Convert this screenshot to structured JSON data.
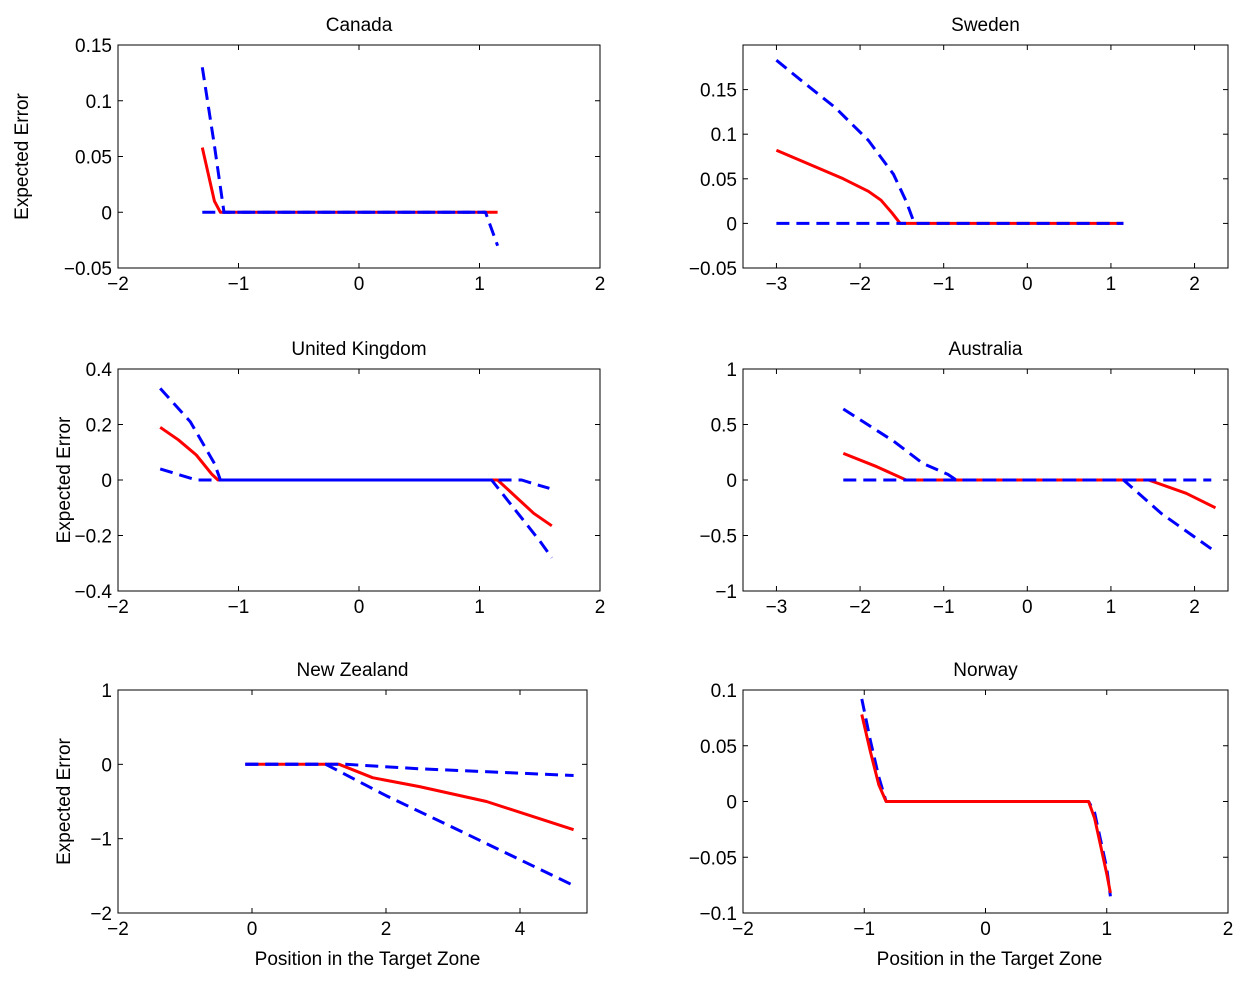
{
  "chart_data": [
    {
      "type": "line",
      "title": "Canada",
      "xlabel": "",
      "ylabel": "Expected Error",
      "xlim": [
        -2,
        2
      ],
      "ylim": [
        -0.05,
        0.15
      ],
      "xticks": [
        -2,
        -1,
        0,
        1,
        2
      ],
      "yticks": [
        -0.05,
        0,
        0.05,
        0.1,
        0.15
      ],
      "xtick_labels": [
        "−2",
        "−1",
        "0",
        "1",
        "2"
      ],
      "ytick_labels": [
        "−0.05",
        "0",
        "0.05",
        "0.1",
        "0.15"
      ],
      "series": [
        {
          "color": "#ff0000",
          "style": "solid",
          "x": [
            -1.3,
            -1.2,
            -1.15,
            1.15
          ],
          "y": [
            0.058,
            0.01,
            0,
            0
          ]
        },
        {
          "color": "#0000ff",
          "style": "dashed",
          "x": [
            -1.3,
            -1.2,
            -1.12,
            1.05,
            1.15
          ],
          "y": [
            0.13,
            0.06,
            0,
            0,
            -0.03
          ]
        },
        {
          "color": "#0000ff",
          "style": "dashed",
          "x": [
            -1.3,
            1.05
          ],
          "y": [
            0,
            0
          ]
        }
      ]
    },
    {
      "type": "line",
      "title": "Sweden",
      "xlabel": "",
      "ylabel": "",
      "xlim": [
        -3.4,
        2.4
      ],
      "ylim": [
        -0.05,
        0.2
      ],
      "xticks": [
        -3,
        -2,
        -1,
        0,
        1,
        2
      ],
      "yticks": [
        -0.05,
        0,
        0.05,
        0.1,
        0.15
      ],
      "xtick_labels": [
        "−3",
        "−2",
        "−1",
        "0",
        "1",
        "2"
      ],
      "ytick_labels": [
        "−0.05",
        "0",
        "0.05",
        "0.1",
        "0.15"
      ],
      "series": [
        {
          "color": "#ff0000",
          "style": "solid",
          "x": [
            -3.0,
            -2.6,
            -2.2,
            -1.9,
            -1.75,
            -1.62,
            -1.52,
            1.15
          ],
          "y": [
            0.082,
            0.066,
            0.05,
            0.036,
            0.026,
            0.012,
            0,
            0
          ]
        },
        {
          "color": "#0000ff",
          "style": "dashed",
          "x": [
            -3.0,
            -2.7,
            -2.3,
            -1.9,
            -1.6,
            -1.45,
            -1.35,
            1.15
          ],
          "y": [
            0.183,
            0.16,
            0.13,
            0.093,
            0.055,
            0.025,
            0,
            0
          ]
        },
        {
          "color": "#0000ff",
          "style": "dashed",
          "x": [
            -3.0,
            -1.45
          ],
          "y": [
            0,
            0
          ]
        }
      ]
    },
    {
      "type": "line",
      "title": "United Kingdom",
      "xlabel": "",
      "ylabel": "Expected Error",
      "xlim": [
        -2,
        2
      ],
      "ylim": [
        -0.4,
        0.4
      ],
      "xticks": [
        -2,
        -1,
        0,
        1,
        2
      ],
      "yticks": [
        -0.4,
        -0.2,
        0,
        0.2,
        0.4
      ],
      "xtick_labels": [
        "−2",
        "−1",
        "0",
        "1",
        "2"
      ],
      "ytick_labels": [
        "−0.4",
        "−0.2",
        "0",
        "0.2",
        "0.4"
      ],
      "series": [
        {
          "color": "#ff0000",
          "style": "solid",
          "x": [
            -1.65,
            -1.5,
            -1.35,
            -1.22,
            -1.17,
            1.15,
            1.3,
            1.45,
            1.6
          ],
          "y": [
            0.19,
            0.145,
            0.09,
            0.02,
            0,
            0,
            -0.06,
            -0.12,
            -0.165
          ]
        },
        {
          "color": "#0000ff",
          "style": "dashed",
          "x": [
            -1.65,
            -1.4,
            -1.2,
            -1.15,
            1.1,
            1.5,
            1.6
          ],
          "y": [
            0.33,
            0.21,
            0.06,
            0,
            0,
            -0.22,
            -0.28
          ]
        },
        {
          "color": "#0000ff",
          "style": "dashed",
          "x": [
            -1.65,
            -1.35,
            -1.15,
            1.35,
            1.5,
            1.58
          ],
          "y": [
            0.04,
            0,
            0,
            0,
            -0.02,
            -0.03
          ]
        }
      ]
    },
    {
      "type": "line",
      "title": "Australia",
      "xlabel": "",
      "ylabel": "",
      "xlim": [
        -3.4,
        2.4
      ],
      "ylim": [
        -1,
        1
      ],
      "xticks": [
        -3,
        -2,
        -1,
        0,
        1,
        2
      ],
      "yticks": [
        -1,
        -0.5,
        0,
        0.5,
        1
      ],
      "xtick_labels": [
        "−3",
        "−2",
        "−1",
        "0",
        "1",
        "2"
      ],
      "ytick_labels": [
        "−1",
        "−0.5",
        "0",
        "0.5",
        "1"
      ],
      "series": [
        {
          "color": "#ff0000",
          "style": "solid",
          "x": [
            -2.2,
            -1.8,
            -1.45,
            1.45,
            1.9,
            2.25
          ],
          "y": [
            0.24,
            0.12,
            0,
            0,
            -0.12,
            -0.25
          ]
        },
        {
          "color": "#0000ff",
          "style": "dashed",
          "x": [
            -2.2,
            -1.6,
            -1.25,
            -0.95,
            -0.85,
            1.15,
            1.6,
            2.2
          ],
          "y": [
            0.64,
            0.35,
            0.15,
            0.05,
            0,
            0,
            -0.3,
            -0.62
          ]
        },
        {
          "color": "#0000ff",
          "style": "dashed",
          "x": [
            -2.2,
            2.2
          ],
          "y": [
            0,
            0
          ]
        }
      ]
    },
    {
      "type": "line",
      "title": "New Zealand",
      "xlabel": "Position in the Target Zone",
      "ylabel": "Expected Error",
      "xlim": [
        -2,
        5
      ],
      "ylim": [
        -2,
        1
      ],
      "xticks": [
        -2,
        0,
        2,
        4
      ],
      "yticks": [
        -2,
        -1,
        0,
        1
      ],
      "xtick_labels": [
        "−2",
        "0",
        "2",
        "4"
      ],
      "ytick_labels": [
        "−2",
        "−1",
        "0",
        "1"
      ],
      "series": [
        {
          "color": "#ff0000",
          "style": "solid",
          "x": [
            -0.1,
            1.3,
            1.8,
            2.5,
            3.5,
            4.8
          ],
          "y": [
            0,
            0,
            -0.18,
            -0.3,
            -0.5,
            -0.88
          ]
        },
        {
          "color": "#0000ff",
          "style": "dashed",
          "x": [
            -0.1,
            1.1,
            2.0,
            3.0,
            4.8
          ],
          "y": [
            0,
            0,
            -0.42,
            -0.85,
            -1.63
          ]
        },
        {
          "color": "#0000ff",
          "style": "dashed",
          "x": [
            -0.1,
            1.4,
            2.5,
            4.8
          ],
          "y": [
            0,
            0,
            -0.06,
            -0.15
          ]
        }
      ]
    },
    {
      "type": "line",
      "title": "Norway",
      "xlabel": "Position in the Target Zone",
      "ylabel": "",
      "xlim": [
        -2,
        2
      ],
      "ylim": [
        -0.1,
        0.1
      ],
      "xticks": [
        -2,
        -1,
        0,
        1,
        2
      ],
      "yticks": [
        -0.1,
        -0.05,
        0,
        0.05,
        0.1
      ],
      "xtick_labels": [
        "−2",
        "−1",
        "0",
        "1",
        "2"
      ],
      "ytick_labels": [
        "−0.1",
        "−0.05",
        "0",
        "0.05",
        "0.1"
      ],
      "series": [
        {
          "color": "#0000ff",
          "style": "dashed",
          "x": [
            -1.02,
            -0.95,
            -0.88,
            -0.82,
            0.85,
            0.9,
            0.95,
            1.0,
            1.03
          ],
          "y": [
            0.092,
            0.055,
            0.022,
            0,
            0,
            -0.01,
            -0.035,
            -0.06,
            -0.085
          ]
        },
        {
          "color": "#ff0000",
          "style": "solid",
          "x": [
            -1.02,
            -0.95,
            -0.88,
            -0.82,
            0.85,
            0.9,
            0.95,
            1.0,
            1.03
          ],
          "y": [
            0.078,
            0.045,
            0.015,
            0,
            0,
            -0.015,
            -0.04,
            -0.065,
            -0.082
          ]
        }
      ]
    }
  ]
}
